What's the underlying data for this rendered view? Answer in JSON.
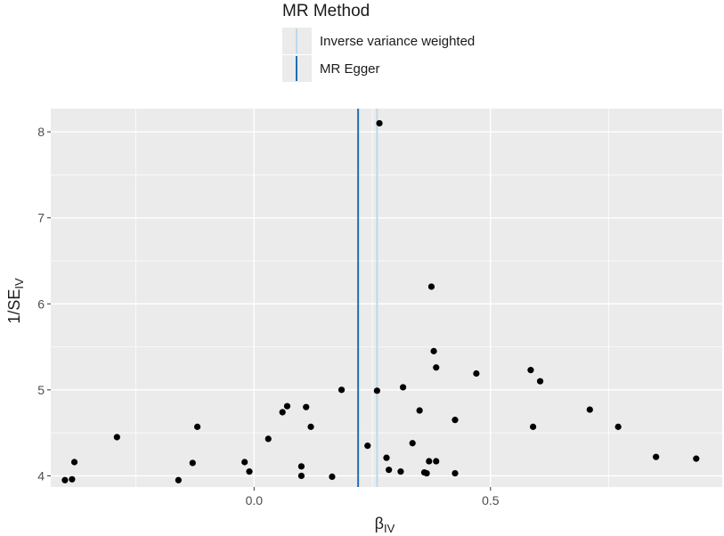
{
  "legend": {
    "title": "MR Method",
    "items": [
      {
        "label": "Inverse variance weighted",
        "color": "#bcd8ec"
      },
      {
        "label": "MR Egger",
        "color": "#1f6fb4"
      }
    ]
  },
  "chart_data": {
    "type": "scatter",
    "title": "",
    "xlabel": "β",
    "xlabel_sub": "IV",
    "ylabel": "1/SE",
    "ylabel_sub": "IV",
    "xlim": [
      -0.43,
      0.99
    ],
    "ylim": [
      3.87,
      8.27
    ],
    "x_ticks": [
      0.0,
      0.5
    ],
    "x_tick_labels": [
      "0.0",
      "0.5"
    ],
    "y_ticks": [
      4,
      5,
      6,
      7,
      8
    ],
    "y_tick_labels": [
      "4",
      "5",
      "6",
      "7",
      "8"
    ],
    "grid": true,
    "panel_background": "#ebebeb",
    "point_color": "#000000",
    "vlines": [
      {
        "method": "Inverse variance weighted",
        "x": 0.26,
        "color": "#bcd8ec"
      },
      {
        "method": "MR Egger",
        "x": 0.22,
        "color": "#1f6fb4"
      }
    ],
    "points": [
      {
        "x": -0.4,
        "y": 3.95
      },
      {
        "x": -0.385,
        "y": 3.96
      },
      {
        "x": -0.38,
        "y": 4.16
      },
      {
        "x": -0.29,
        "y": 4.45
      },
      {
        "x": -0.16,
        "y": 3.95
      },
      {
        "x": -0.13,
        "y": 4.15
      },
      {
        "x": -0.12,
        "y": 4.57
      },
      {
        "x": -0.02,
        "y": 4.16
      },
      {
        "x": -0.01,
        "y": 4.05
      },
      {
        "x": 0.03,
        "y": 4.43
      },
      {
        "x": 0.06,
        "y": 4.74
      },
      {
        "x": 0.07,
        "y": 4.81
      },
      {
        "x": 0.1,
        "y": 4.11
      },
      {
        "x": 0.1,
        "y": 4.0
      },
      {
        "x": 0.11,
        "y": 4.8
      },
      {
        "x": 0.12,
        "y": 4.57
      },
      {
        "x": 0.165,
        "y": 3.99
      },
      {
        "x": 0.185,
        "y": 5.0
      },
      {
        "x": 0.24,
        "y": 4.35
      },
      {
        "x": 0.26,
        "y": 4.99
      },
      {
        "x": 0.265,
        "y": 8.1
      },
      {
        "x": 0.28,
        "y": 4.21
      },
      {
        "x": 0.285,
        "y": 4.07
      },
      {
        "x": 0.31,
        "y": 4.05
      },
      {
        "x": 0.315,
        "y": 5.03
      },
      {
        "x": 0.335,
        "y": 4.38
      },
      {
        "x": 0.35,
        "y": 4.76
      },
      {
        "x": 0.36,
        "y": 4.04
      },
      {
        "x": 0.365,
        "y": 4.03
      },
      {
        "x": 0.37,
        "y": 4.17
      },
      {
        "x": 0.375,
        "y": 6.2
      },
      {
        "x": 0.38,
        "y": 5.45
      },
      {
        "x": 0.385,
        "y": 5.26
      },
      {
        "x": 0.385,
        "y": 4.17
      },
      {
        "x": 0.425,
        "y": 4.03
      },
      {
        "x": 0.425,
        "y": 4.65
      },
      {
        "x": 0.47,
        "y": 5.19
      },
      {
        "x": 0.585,
        "y": 5.23
      },
      {
        "x": 0.59,
        "y": 4.57
      },
      {
        "x": 0.605,
        "y": 5.1
      },
      {
        "x": 0.71,
        "y": 4.77
      },
      {
        "x": 0.77,
        "y": 4.57
      },
      {
        "x": 0.85,
        "y": 4.22
      },
      {
        "x": 0.935,
        "y": 4.2
      }
    ]
  }
}
